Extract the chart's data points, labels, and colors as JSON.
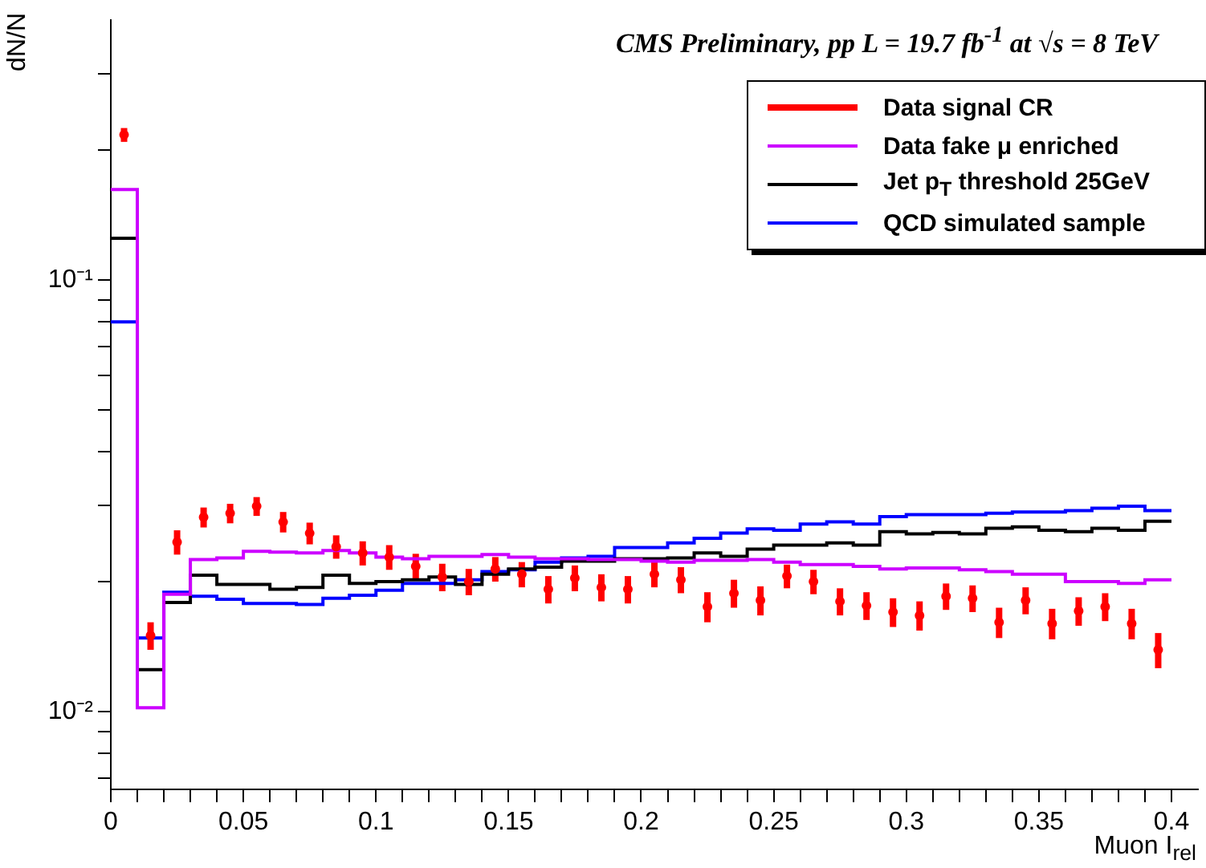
{
  "chart_data": {
    "type": "histogram",
    "title": "CMS Preliminary, pp L = 19.7 fb$^{-1}$ at √s = 8 TeV",
    "xlabel": "Muon I$_{rel}$",
    "ylabel": "dN/N",
    "bins": [
      0,
      0.01,
      0.02,
      0.03,
      0.04,
      0.05,
      0.06,
      0.07,
      0.08,
      0.09,
      0.1,
      0.11,
      0.12,
      0.13,
      0.14,
      0.15,
      0.16,
      0.17,
      0.18,
      0.19,
      0.2,
      0.21,
      0.22,
      0.23,
      0.24,
      0.25,
      0.26,
      0.27,
      0.28,
      0.29,
      0.3,
      0.31,
      0.32,
      0.33,
      0.34,
      0.35,
      0.36,
      0.37,
      0.38,
      0.39,
      0.4
    ],
    "series": [
      {
        "name": "Data signal CR",
        "type": "scatter",
        "color": "#ff0000",
        "x": [
          0.005,
          0.015,
          0.025,
          0.035,
          0.045,
          0.055,
          0.065,
          0.075,
          0.085,
          0.095,
          0.105,
          0.115,
          0.125,
          0.135,
          0.145,
          0.155,
          0.165,
          0.175,
          0.185,
          0.195,
          0.205,
          0.215,
          0.225,
          0.235,
          0.245,
          0.255,
          0.265,
          0.275,
          0.285,
          0.295,
          0.305,
          0.315,
          0.325,
          0.335,
          0.345,
          0.355,
          0.365,
          0.375,
          0.385,
          0.395
        ],
        "values": [
          0.217,
          0.015,
          0.0247,
          0.0282,
          0.0288,
          0.0299,
          0.0275,
          0.0259,
          0.0241,
          0.0233,
          0.0228,
          0.0217,
          0.0205,
          0.02,
          0.0214,
          0.0208,
          0.0192,
          0.0204,
          0.0194,
          0.0192,
          0.0208,
          0.0202,
          0.0175,
          0.0188,
          0.0181,
          0.0206,
          0.02,
          0.018,
          0.0176,
          0.017,
          0.0167,
          0.0185,
          0.0183,
          0.0161,
          0.0181,
          0.016,
          0.0171,
          0.0175,
          0.016,
          0.0139
        ],
        "errors": [
          0.008,
          0.0011,
          0.0016,
          0.0015,
          0.0015,
          0.0015,
          0.0015,
          0.0015,
          0.0015,
          0.0015,
          0.0015,
          0.0015,
          0.0015,
          0.0014,
          0.0014,
          0.0014,
          0.0014,
          0.0014,
          0.0014,
          0.0014,
          0.0014,
          0.0014,
          0.0014,
          0.0014,
          0.0014,
          0.0013,
          0.0013,
          0.0013,
          0.0013,
          0.0013,
          0.0013,
          0.0013,
          0.0013,
          0.0013,
          0.0013,
          0.0013,
          0.0013,
          0.0013,
          0.0013,
          0.0013
        ]
      },
      {
        "name": "Data fake μ enriched",
        "color": "#cc00ff",
        "values": [
          0.162,
          0.0102,
          0.0187,
          0.0225,
          0.0227,
          0.0235,
          0.0234,
          0.0233,
          0.0236,
          0.0233,
          0.0228,
          0.0226,
          0.0229,
          0.0229,
          0.0231,
          0.0228,
          0.0226,
          0.0226,
          0.0225,
          0.0225,
          0.0223,
          0.0222,
          0.0224,
          0.0224,
          0.0225,
          0.0222,
          0.0219,
          0.0219,
          0.0217,
          0.0214,
          0.0215,
          0.0215,
          0.0213,
          0.0211,
          0.0208,
          0.0208,
          0.02,
          0.02,
          0.0198,
          0.0202
        ]
      },
      {
        "name": "Jet p$_{T}$ threshold 25GeV",
        "color": "#000000",
        "values": [
          0.125,
          0.0125,
          0.0179,
          0.0207,
          0.0197,
          0.0197,
          0.0192,
          0.0194,
          0.0207,
          0.0198,
          0.02,
          0.0202,
          0.0205,
          0.0197,
          0.0208,
          0.0214,
          0.0216,
          0.0223,
          0.0223,
          0.0226,
          0.0226,
          0.0227,
          0.0233,
          0.0229,
          0.0238,
          0.0243,
          0.0243,
          0.0246,
          0.0243,
          0.0261,
          0.0258,
          0.026,
          0.0258,
          0.0266,
          0.0268,
          0.0263,
          0.0261,
          0.0266,
          0.0263,
          0.0276
        ]
      },
      {
        "name": "QCD simulated sample",
        "color": "#0000ff",
        "values": [
          0.08,
          0.0148,
          0.0189,
          0.0185,
          0.0182,
          0.0178,
          0.0178,
          0.0177,
          0.0183,
          0.0186,
          0.0191,
          0.0198,
          0.0198,
          0.0202,
          0.0211,
          0.0213,
          0.0222,
          0.0227,
          0.0229,
          0.024,
          0.024,
          0.0246,
          0.0252,
          0.0259,
          0.0265,
          0.0263,
          0.0272,
          0.0275,
          0.0272,
          0.0283,
          0.0286,
          0.0286,
          0.0286,
          0.0288,
          0.029,
          0.029,
          0.0292,
          0.0296,
          0.0299,
          0.0292
        ]
      }
    ],
    "log": "y",
    "xlim": [
      0,
      0.41
    ],
    "ylim": [
      0.0066,
      0.4
    ],
    "xticks": [
      0,
      {
        "value": 0.01,
        "label": null
      },
      {
        "value": 0.02,
        "label": null
      },
      {
        "value": 0.03,
        "label": null
      },
      {
        "value": 0.04,
        "label": null
      },
      0.05,
      {
        "value": 0.06,
        "label": null
      },
      {
        "value": 0.07,
        "label": null
      },
      {
        "value": 0.08,
        "label": null
      },
      {
        "value": 0.09,
        "label": null
      },
      0.1,
      {
        "value": 0.11,
        "label": null
      },
      {
        "value": 0.12,
        "label": null
      },
      {
        "value": 0.13,
        "label": null
      },
      {
        "value": 0.14,
        "label": null
      },
      0.15,
      {
        "value": 0.16,
        "label": null
      },
      {
        "value": 0.17,
        "label": null
      },
      {
        "value": 0.18,
        "label": null
      },
      {
        "value": 0.19,
        "label": null
      },
      0.2,
      {
        "value": 0.21,
        "label": null
      },
      {
        "value": 0.22,
        "label": null
      },
      {
        "value": 0.23,
        "label": null
      },
      {
        "value": 0.24,
        "label": null
      },
      0.25,
      {
        "value": 0.26,
        "label": null
      },
      {
        "value": 0.27,
        "label": null
      },
      {
        "value": 0.28,
        "label": null
      },
      {
        "value": 0.29,
        "label": null
      },
      0.3,
      {
        "value": 0.31,
        "label": null
      },
      {
        "value": 0.32,
        "label": null
      },
      {
        "value": 0.33,
        "label": null
      },
      {
        "value": 0.34,
        "label": null
      },
      0.35,
      {
        "value": 0.36,
        "label": null
      },
      {
        "value": 0.37,
        "label": null
      },
      {
        "value": 0.38,
        "label": null
      },
      {
        "value": 0.39,
        "label": null
      },
      0.4
    ],
    "yticks": [
      {
        "value": 0.007,
        "label": null
      },
      {
        "value": 0.008,
        "label": null
      },
      {
        "value": 0.009,
        "label": null
      },
      {
        "value": 0.01,
        "label": "10⁻²"
      },
      {
        "value": 0.02,
        "label": null
      },
      {
        "value": 0.03,
        "label": null
      },
      {
        "value": 0.04,
        "label": null
      },
      {
        "value": 0.05,
        "label": null
      },
      {
        "value": 0.06,
        "label": null
      },
      {
        "value": 0.07,
        "label": null
      },
      {
        "value": 0.08,
        "label": null
      },
      {
        "value": 0.09,
        "label": null
      },
      {
        "value": 0.1,
        "label": "10⁻¹"
      },
      {
        "value": 0.2,
        "label": null
      },
      {
        "value": 0.3,
        "label": null
      }
    ],
    "grid": false,
    "legend": "top right"
  }
}
